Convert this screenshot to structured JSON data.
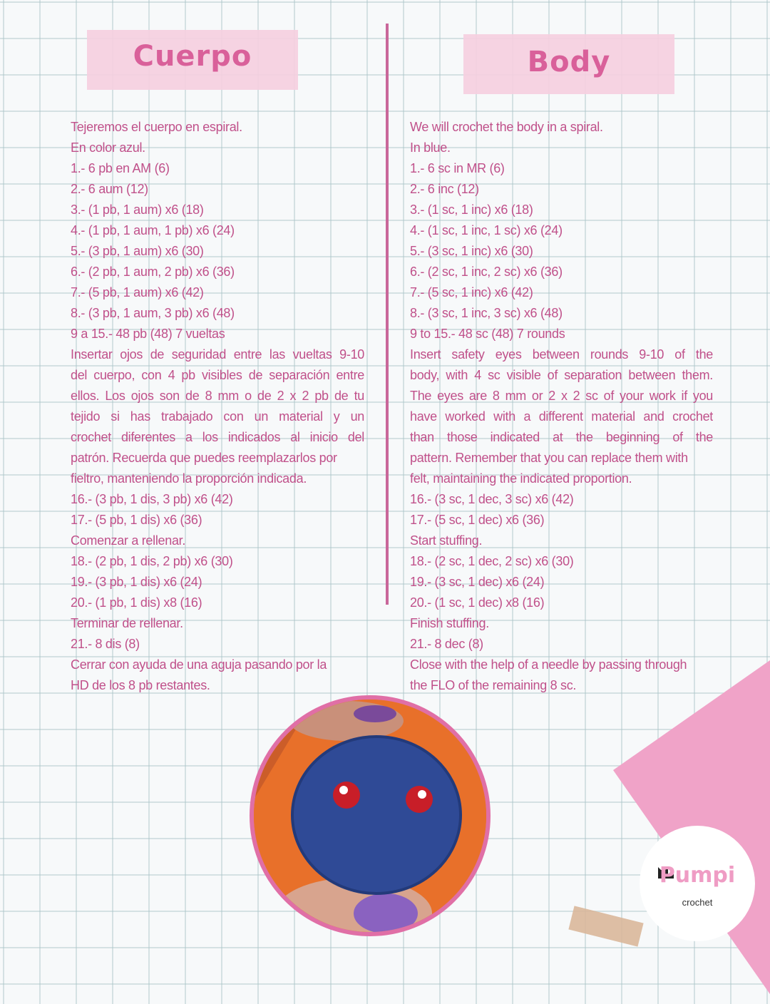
{
  "left": {
    "title": "Cuerpo",
    "lines": [
      "Tejeremos el cuerpo en espiral.",
      "En color azul.",
      "1.- 6 pb en AM (6)",
      "2.- 6 aum (12)",
      "3.- (1 pb, 1 aum) x6  (18)",
      "4.- (1 pb, 1 aum, 1 pb) x6 (24)",
      "5.- (3 pb, 1 aum) x6 (30)",
      "6.- (2 pb, 1 aum, 2 pb) x6 (36)",
      "7.- (5 pb, 1 aum) x6 (42)",
      "8.- (3 pb, 1 aum, 3 pb) x6 (48)",
      "9 a 15.- 48 pb (48) 7 vueltas",
      "Insertar ojos de seguridad entre las vueltas 9-10",
      "del cuerpo, con 4 pb visibles de separación entre",
      "ellos. Los ojos son de 8 mm o de 2 x 2 pb de tu",
      "tejido si has trabajado con un material y un",
      "crochet diferentes a los indicados al inicio del",
      "patrón. Recuerda que puedes reemplazarlos por",
      "fieltro, manteniendo la proporción indicada.",
      "16.- (3 pb, 1 dis, 3 pb) x6 (42)",
      "17.- (5 pb, 1 dis) x6 (36)",
      "Comenzar a rellenar.",
      "18.- (2 pb, 1 dis, 2 pb) x6 (30)",
      "19.- (3 pb, 1 dis) x6 (24)",
      "20.- (1 pb, 1 dis) x8  (16)",
      "Terminar de rellenar.",
      "21.- 8 dis  (8)",
      "Cerrar con ayuda de una aguja pasando por la",
      "HD de los 8 pb restantes."
    ]
  },
  "right": {
    "title": "Body",
    "lines": [
      "We will crochet the body in a spiral.",
      "In blue.",
      "1.- 6 sc in MR (6)",
      "2.- 6 inc (12)",
      "3.- (1 sc, 1 inc) x6  (18)",
      "4.- (1 sc, 1 inc, 1 sc) x6 (24)",
      "5.- (3 sc, 1 inc) x6 (30)",
      "6.- (2 sc, 1 inc, 2 sc) x6 (36)",
      "7.- (5 sc, 1 inc) x6 (42)",
      "8.- (3 sc, 1 inc, 3 sc) x6 (48)",
      "9 to 15.- 48 sc (48) 7 rounds",
      "Insert safety eyes between rounds 9-10 of the",
      "body, with 4 sc visible of separation between them.",
      "The eyes are 8 mm or 2 x 2 sc of your work if you",
      "have worked with a different material and crochet",
      "than those indicated at the beginning of the",
      "pattern. Remember that you can replace them with",
      "felt, maintaining the indicated proportion.",
      "16.- (3 sc, 1 dec, 3 sc) x6 (42)",
      "17.- (5 sc, 1 dec) x6 (36)",
      "Start stuffing.",
      "18.- (2 sc, 1 dec, 2 sc) x6 (30)",
      "19.- (3 sc, 1 dec) x6 (24)",
      "20.- (1 sc, 1 dec) x8  (16)",
      "Finish stuffing.",
      "21.- 8 dec  (8)",
      "Close with the help of a needle by passing through",
      "the FLO of the remaining 8 sc."
    ]
  },
  "logo": {
    "word": "Pumpi",
    "sub": "crochet"
  },
  "colors": {
    "text": "#c0508a",
    "title": "#d9609a",
    "tape": "#f5cfe0",
    "accent": "#e06fa6"
  }
}
